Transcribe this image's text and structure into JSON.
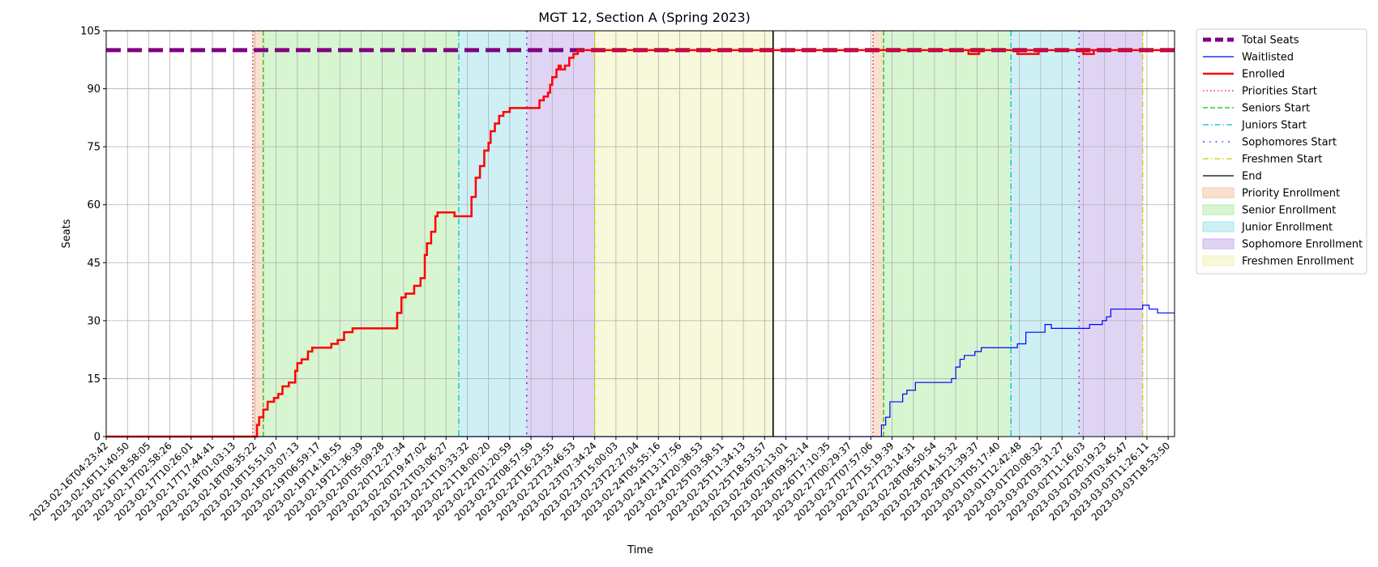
{
  "chart_data": {
    "type": "line",
    "title": "MGT 12, Section A (Spring 2023)",
    "xlabel": "Time",
    "ylabel": "Seats",
    "ylim": [
      0,
      105
    ],
    "yticks": [
      0,
      15,
      30,
      45,
      60,
      75,
      90,
      105
    ],
    "grid": true,
    "legend_position": "outside-right",
    "xticks": [
      "2023-02-16T04:23:42",
      "2023-02-16T11:40:50",
      "2023-02-16T18:58:05",
      "2023-02-17T02:58:26",
      "2023-02-17T10:26:01",
      "2023-02-17T17:44:41",
      "2023-02-18T01:03:13",
      "2023-02-18T08:35:22",
      "2023-02-18T15:51:07",
      "2023-02-18T23:07:13",
      "2023-02-19T06:59:17",
      "2023-02-19T14:18:55",
      "2023-02-19T21:36:39",
      "2023-02-20T05:09:28",
      "2023-02-20T12:27:34",
      "2023-02-20T19:47:02",
      "2023-02-21T03:06:27",
      "2023-02-21T10:33:32",
      "2023-02-21T18:00:20",
      "2023-02-22T01:20:59",
      "2023-02-22T08:57:59",
      "2023-02-22T16:23:55",
      "2023-02-22T23:46:53",
      "2023-02-23T07:34:24",
      "2023-02-23T15:00:03",
      "2023-02-23T22:27:04",
      "2023-02-24T05:55:16",
      "2023-02-24T13:17:56",
      "2023-02-24T20:38:53",
      "2023-02-25T03:58:51",
      "2023-02-25T11:34:13",
      "2023-02-25T18:53:57",
      "2023-02-26T02:13:01",
      "2023-02-26T09:52:14",
      "2023-02-26T17:10:35",
      "2023-02-27T00:29:37",
      "2023-02-27T07:57:06",
      "2023-02-27T15:19:39",
      "2023-02-27T23:14:31",
      "2023-02-28T06:50:54",
      "2023-02-28T14:15:32",
      "2023-02-28T21:39:37",
      "2023-03-01T05:17:40",
      "2023-03-01T12:42:48",
      "2023-03-01T20:08:32",
      "2023-03-02T03:31:27",
      "2023-03-02T11:16:03",
      "2023-03-02T20:19:23",
      "2023-03-03T03:45:47",
      "2023-03-03T11:26:11",
      "2023-03-03T18:53:50"
    ],
    "x_tick_positions": [
      0,
      1,
      2,
      3,
      4,
      5,
      6,
      7,
      8,
      9,
      10,
      11,
      12,
      13,
      14,
      15,
      16,
      17,
      18,
      19,
      20,
      21,
      22,
      23,
      24,
      25,
      26,
      27,
      28,
      29,
      30,
      31,
      32,
      33,
      34,
      35,
      36,
      37,
      38,
      39,
      40,
      41,
      42,
      43,
      44,
      45,
      46,
      47,
      48,
      49,
      50
    ],
    "xlim": [
      0,
      50.3
    ],
    "series": [
      {
        "name": "Total Seats",
        "color": "#800080",
        "style": "dashed",
        "x": [
          0,
          50.3
        ],
        "y": [
          100,
          100
        ]
      },
      {
        "name": "Waitlisted",
        "color": "#0000ff",
        "style": "solid",
        "x": [
          0,
          36.2,
          36.5,
          36.7,
          36.9,
          37.1,
          37.5,
          37.7,
          38.1,
          38.3,
          38.6,
          38.8,
          39.0,
          39.8,
          40.0,
          40.2,
          40.4,
          40.6,
          40.9,
          41.2,
          41.5,
          42.3,
          42.7,
          42.9,
          43.3,
          43.5,
          43.9,
          44.2,
          44.5,
          46.0,
          46.3,
          46.6,
          46.9,
          47.1,
          47.3,
          47.6,
          48.6,
          48.8,
          49.1,
          49.5,
          50.3
        ],
        "y": [
          0,
          0,
          3,
          5,
          9,
          9,
          11,
          12,
          14,
          14,
          14,
          14,
          14,
          15,
          18,
          20,
          21,
          21,
          22,
          23,
          23,
          23,
          23,
          24,
          27,
          27,
          27,
          29,
          28,
          28,
          29,
          29,
          30,
          31,
          33,
          33,
          33,
          34,
          33,
          32,
          32
        ]
      },
      {
        "name": "Enrolled",
        "color": "#ff0000",
        "style": "solid",
        "x": [
          0,
          7.0,
          7.1,
          7.2,
          7.4,
          7.6,
          7.9,
          8.1,
          8.3,
          8.6,
          8.9,
          9.0,
          9.2,
          9.5,
          9.7,
          10.0,
          10.3,
          10.6,
          10.9,
          11.2,
          11.6,
          12.0,
          12.4,
          13.0,
          13.5,
          13.7,
          13.9,
          14.1,
          14.5,
          14.8,
          15.0,
          15.1,
          15.3,
          15.5,
          15.6,
          16.0,
          16.4,
          16.6,
          17.0,
          17.2,
          17.4,
          17.6,
          17.8,
          18.0,
          18.1,
          18.3,
          18.5,
          18.7,
          19.0,
          19.3,
          19.6,
          19.8,
          20.1,
          20.4,
          20.6,
          20.8,
          20.9,
          21.0,
          21.2,
          21.3,
          21.4,
          21.6,
          21.8,
          22.0,
          22.2,
          50.3
        ],
        "y": [
          0,
          0,
          3,
          5,
          7,
          9,
          10,
          11,
          13,
          14,
          17,
          19,
          20,
          22,
          23,
          23,
          23,
          24,
          25,
          27,
          28,
          28,
          28,
          28,
          28,
          32,
          36,
          37,
          39,
          41,
          47,
          50,
          53,
          57,
          58,
          58,
          57,
          57,
          57,
          62,
          67,
          70,
          74,
          76,
          79,
          81,
          83,
          84,
          85,
          85,
          85,
          85,
          85,
          87,
          88,
          89,
          91,
          93,
          95,
          96,
          95,
          96,
          98,
          99,
          100,
          100
        ]
      }
    ],
    "dips_enrolled": [
      {
        "x": [
          40.6,
          41.1
        ],
        "y": 99
      },
      {
        "x": [
          42.9,
          43.9
        ],
        "y": 99
      },
      {
        "x": [
          46.0,
          46.5
        ],
        "y": 99
      }
    ],
    "phase_lines": [
      {
        "name": "Priorities Start",
        "color": "#ff0000",
        "style": "dotted",
        "x": [
          6.9,
          36.1
        ]
      },
      {
        "name": "Seniors Start",
        "color": "#00cc00",
        "style": "dashed",
        "x": [
          7.4,
          36.6
        ]
      },
      {
        "name": "Juniors Start",
        "color": "#00bfbf",
        "style": "dashdot",
        "x": [
          16.6,
          42.6
        ]
      },
      {
        "name": "Sophomores Start",
        "color": "#6600cc",
        "style": "dashdot2",
        "x": [
          19.8,
          45.8
        ]
      },
      {
        "name": "Freshmen Start",
        "color": "#cccc00",
        "style": "dashdot",
        "x": [
          23.0,
          48.8
        ]
      },
      {
        "name": "End",
        "color": "#000000",
        "style": "solid",
        "x": [
          31.4
        ]
      }
    ],
    "phase_spans": [
      {
        "name": "Priority Enrollment",
        "color": "#f5c6a8",
        "ranges": [
          [
            6.9,
            7.4
          ],
          [
            36.1,
            36.6
          ]
        ]
      },
      {
        "name": "Senior Enrollment",
        "color": "#b7ecab",
        "ranges": [
          [
            7.4,
            16.6
          ],
          [
            36.6,
            42.6
          ]
        ]
      },
      {
        "name": "Junior Enrollment",
        "color": "#a5e4ec",
        "ranges": [
          [
            16.6,
            19.8
          ],
          [
            42.6,
            45.8
          ]
        ]
      },
      {
        "name": "Sophomore Enrollment",
        "color": "#c7b0ed",
        "ranges": [
          [
            19.8,
            23.0
          ],
          [
            45.8,
            48.8
          ]
        ]
      },
      {
        "name": "Freshmen Enrollment",
        "color": "#f2f2bb",
        "ranges": [
          [
            23.0,
            31.4
          ]
        ]
      }
    ],
    "legend": [
      {
        "label": "Total Seats",
        "kind": "line",
        "color": "#800080",
        "style": "thick-dashed"
      },
      {
        "label": "Waitlisted",
        "kind": "line",
        "color": "#0000ff",
        "style": "solid"
      },
      {
        "label": "Enrolled",
        "kind": "line",
        "color": "#ff0000",
        "style": "thick"
      },
      {
        "label": "Priorities Start",
        "kind": "line",
        "color": "#ff0000",
        "style": "dotted"
      },
      {
        "label": "Seniors Start",
        "kind": "line",
        "color": "#00cc00",
        "style": "dashed"
      },
      {
        "label": "Juniors Start",
        "kind": "line",
        "color": "#00bfbf",
        "style": "dashdot"
      },
      {
        "label": "Sophomores Start",
        "kind": "line",
        "color": "#6600cc",
        "style": "dashdot2"
      },
      {
        "label": "Freshmen Start",
        "kind": "line",
        "color": "#cccc00",
        "style": "dashdot"
      },
      {
        "label": "End",
        "kind": "line",
        "color": "#000000",
        "style": "solid"
      },
      {
        "label": "Priority Enrollment",
        "kind": "patch",
        "color": "#f5c6a8"
      },
      {
        "label": "Senior Enrollment",
        "kind": "patch",
        "color": "#b7ecab"
      },
      {
        "label": "Junior Enrollment",
        "kind": "patch",
        "color": "#a5e4ec"
      },
      {
        "label": "Sophomore Enrollment",
        "kind": "patch",
        "color": "#c7b0ed"
      },
      {
        "label": "Freshmen Enrollment",
        "kind": "patch",
        "color": "#f2f2bb"
      }
    ]
  }
}
